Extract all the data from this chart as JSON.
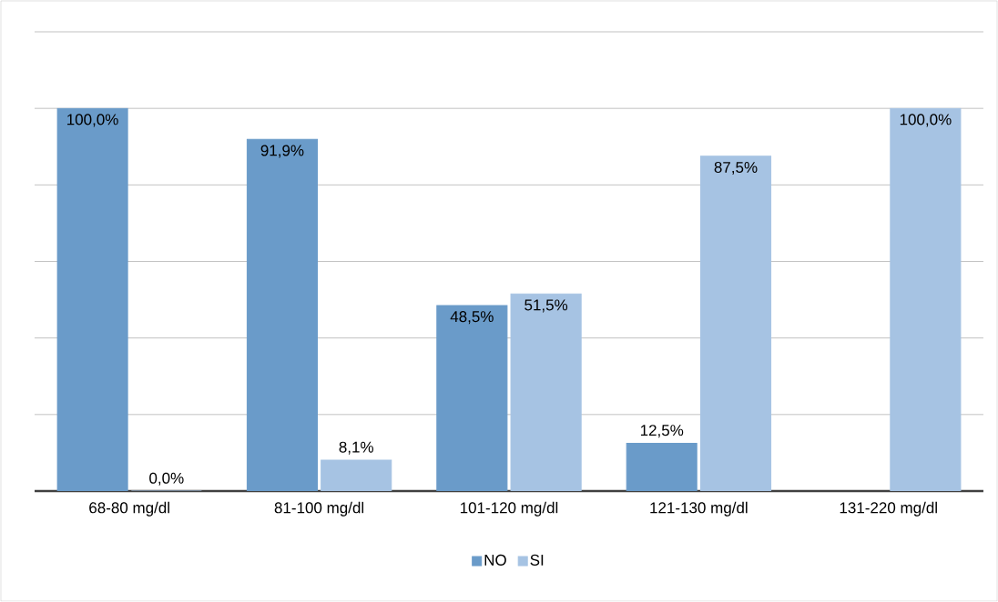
{
  "chart_data": {
    "type": "bar",
    "categories": [
      "68-80 mg/dl",
      "81-100 mg/dl",
      "101-120 mg/dl",
      "121-130 mg/dl",
      "131-220 mg/dl"
    ],
    "series": [
      {
        "name": "NO",
        "color": "#6a9bc9",
        "values": [
          100.0,
          91.9,
          48.5,
          12.5,
          null
        ],
        "value_labels": [
          "100,0%",
          "91,9%",
          "48,5%",
          "12,5%",
          null
        ]
      },
      {
        "name": "SI",
        "color": "#a6c3e3",
        "values": [
          0.0,
          8.1,
          51.5,
          87.5,
          100.0
        ],
        "value_labels": [
          "0,0%",
          "8,1%",
          "51,5%",
          "87,5%",
          "100,0%"
        ]
      }
    ],
    "tick_labels": "x",
    "grid": "y",
    "legend": "bottom"
  }
}
